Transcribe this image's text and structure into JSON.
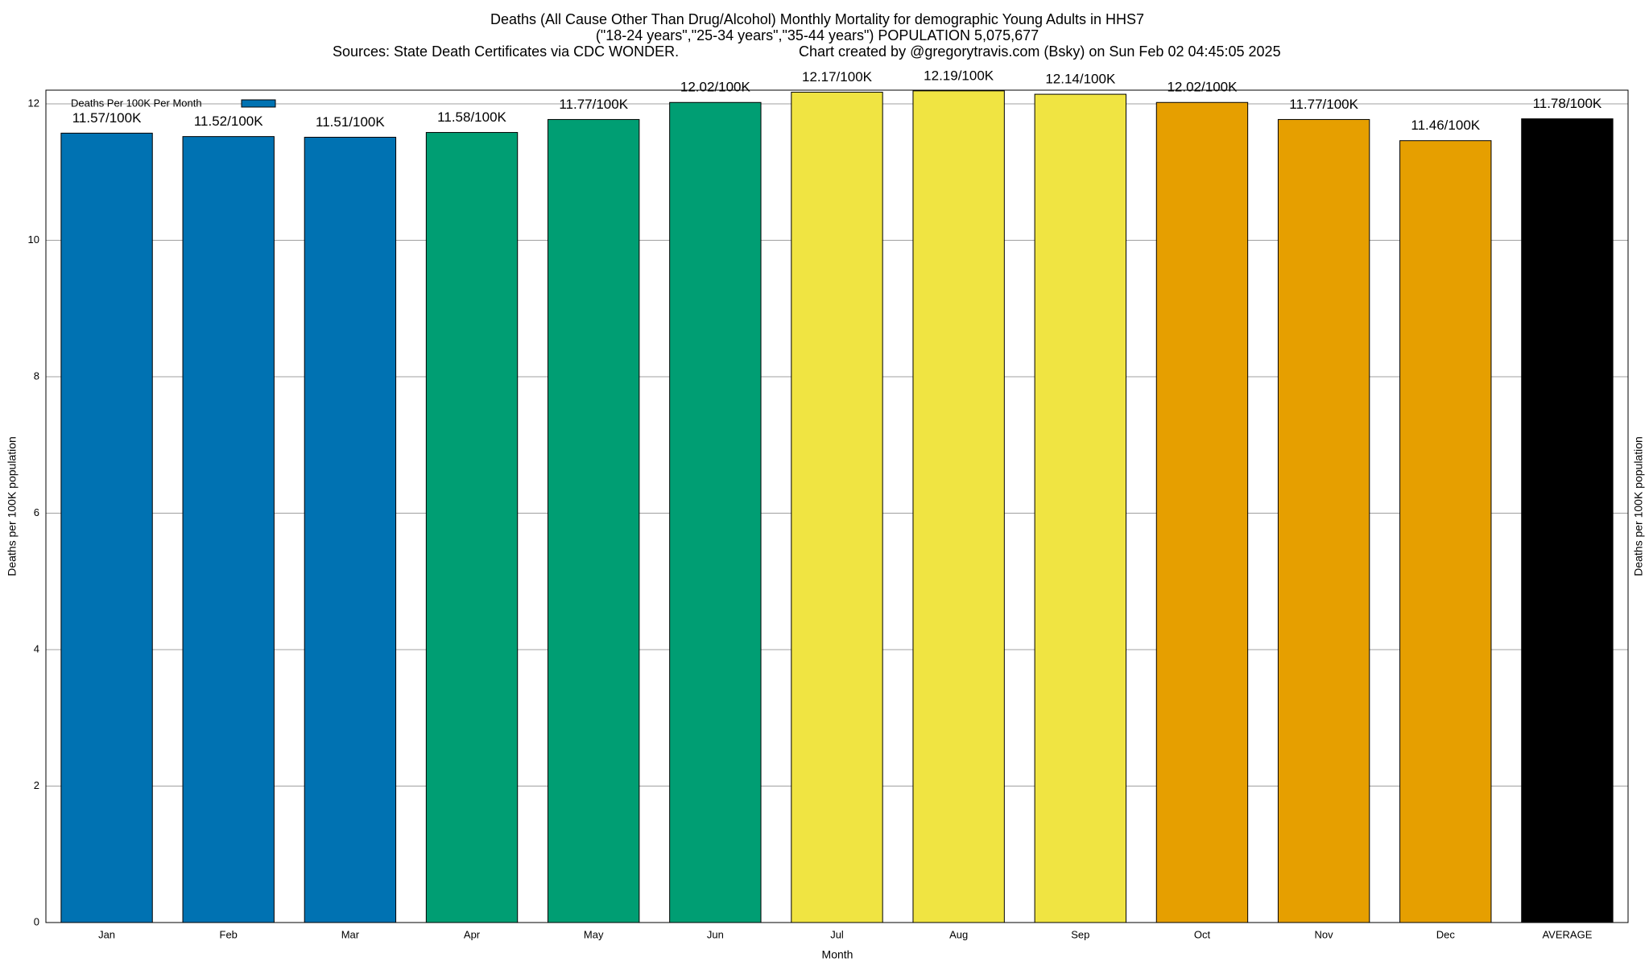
{
  "chart_data": {
    "type": "bar",
    "title": "Deaths (All Cause Other Than Drug/Alcohol) Monthly Mortality for demographic Young Adults in HHS7",
    "subtitle": "(\"18-24 years\",\"25-34 years\",\"35-44 years\") POPULATION 5,075,677",
    "source": "Sources: State Death Certificates via CDC WONDER.",
    "credit": "Chart created by @gregorytravis.com (Bsky) on Sun Feb 02 04:45:05 2025",
    "x_label": "Month",
    "y_label": "Deaths per 100K population",
    "y2_label": "Deaths per 100K population",
    "categories": [
      "Jan",
      "Feb",
      "Mar",
      "Apr",
      "May",
      "Jun",
      "Jul",
      "Aug",
      "Sep",
      "Oct",
      "Nov",
      "Dec",
      "AVERAGE"
    ],
    "series": [
      {
        "name": "Deaths Per 100K Per Month",
        "color": "#0072b2",
        "values": [
          11.57,
          11.52,
          11.51,
          11.58,
          11.77,
          12.02,
          12.17,
          12.19,
          12.14,
          12.02,
          11.77,
          11.46,
          11.78
        ],
        "value_labels": [
          "11.57/100K",
          "11.52/100K",
          "11.51/100K",
          "11.58/100K",
          "11.77/100K",
          "12.02/100K",
          "12.17/100K",
          "12.19/100K",
          "12.14/100K",
          "12.02/100K",
          "11.77/100K",
          "11.46/100K",
          "11.78/100K"
        ],
        "colors": [
          "#0072b2",
          "#0072b2",
          "#0072b2",
          "#009e73",
          "#009e73",
          "#009e73",
          "#f0e442",
          "#f0e442",
          "#f0e442",
          "#e69f00",
          "#e69f00",
          "#e69f00",
          "#000000"
        ]
      }
    ],
    "ylim": [
      0,
      12.2
    ],
    "yticks": [
      0,
      2,
      4,
      6,
      8,
      10,
      12
    ],
    "grid": true,
    "legend": "upper left"
  }
}
